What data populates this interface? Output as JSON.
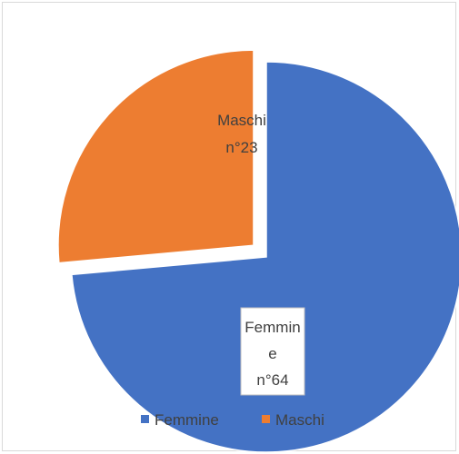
{
  "chart_data": {
    "type": "pie",
    "title": "",
    "slices": [
      {
        "name": "Femmine",
        "value": 64,
        "color": "#4472C4",
        "label_lines": [
          "Femmin",
          "e",
          "n°64"
        ]
      },
      {
        "name": "Maschi",
        "value": 23,
        "color": "#ED7D31",
        "label_lines": [
          "Maschi",
          "n°23"
        ]
      }
    ],
    "start_angle_deg": 0,
    "direction": "clockwise",
    "exploded": "Maschi",
    "legend": {
      "position": "bottom",
      "items": [
        "Femmine",
        "Maschi"
      ]
    }
  }
}
